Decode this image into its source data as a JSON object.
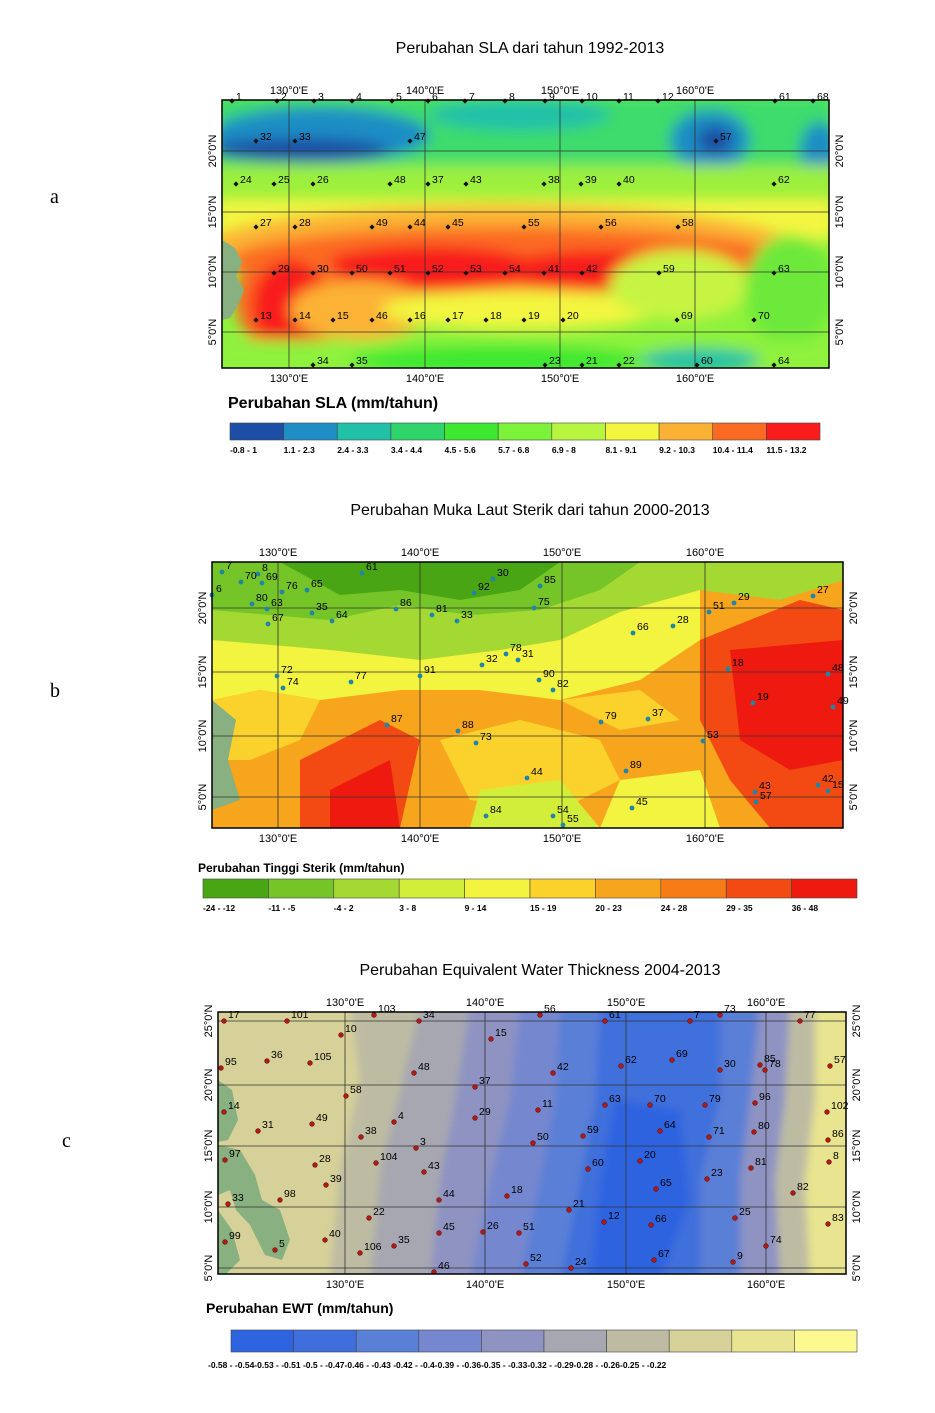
{
  "panels": [
    {
      "letter": "a",
      "title": "Perubahan SLA dari tahun 1992-2013",
      "lon_ticks": [
        "130°0'E",
        "140°0'E",
        "150°0'E",
        "160°0'E"
      ],
      "lat_ticks": [
        "20°0'N",
        "15°0'N",
        "10°0'N",
        "5°0'N"
      ],
      "legend_title": "Perubahan SLA (mm/tahun)",
      "legend_labels": [
        "-0.8 - 1",
        "1.1 - 2.3",
        "2.4 - 3.3",
        "3.4 - 4.4",
        "4.5 - 5.6",
        "5.7 - 6.8",
        "6.9 - 8",
        "8.1 - 9.1",
        "9.2 - 10.3",
        "10.4 - 11.4",
        "11.5 - 13.2"
      ],
      "legend_colors": [
        "#1d4ea6",
        "#1f8ec4",
        "#21c1a8",
        "#2ed46a",
        "#3ee831",
        "#7cf23a",
        "#b8f540",
        "#f3f63f",
        "#fbb234",
        "#fb6a22",
        "#f81c1c"
      ],
      "stations": [
        "1",
        "2",
        "3",
        "4",
        "5",
        "6",
        "7",
        "8",
        "9",
        "10",
        "11",
        "12",
        "61",
        "68",
        "32",
        "33",
        "47",
        "57",
        "24",
        "25",
        "26",
        "48",
        "37",
        "43",
        "38",
        "39",
        "40",
        "62",
        "27",
        "28",
        "49",
        "44",
        "45",
        "55",
        "56",
        "58",
        "29",
        "30",
        "50",
        "51",
        "52",
        "53",
        "54",
        "41",
        "42",
        "59",
        "63",
        "13",
        "14",
        "15",
        "46",
        "16",
        "17",
        "18",
        "19",
        "20",
        "69",
        "70",
        "34",
        "35",
        "23",
        "21",
        "22",
        "60",
        "64"
      ]
    },
    {
      "letter": "b",
      "title": "Perubahan Muka Laut Sterik dari tahun 2000-2013",
      "lon_ticks": [
        "130°0'E",
        "140°0'E",
        "150°0'E",
        "160°0'E"
      ],
      "lat_ticks": [
        "20°0'N",
        "15°0'N",
        "10°0'N",
        "5°0'N"
      ],
      "legend_title": "Perubahan Tinggi Sterik (mm/tahun)",
      "legend_labels": [
        "-24 - -12",
        "-11 - -5",
        "-4 - 2",
        "3 - 8",
        "9 - 14",
        "15 - 19",
        "20 - 23",
        "24 - 28",
        "29 - 35",
        "36 - 48"
      ],
      "legend_colors": [
        "#4aa514",
        "#75c428",
        "#a4d934",
        "#d3ee3a",
        "#f2f43f",
        "#fbd22c",
        "#f8a51e",
        "#f77b16",
        "#f24a12",
        "#ee1a10"
      ],
      "stations": [
        "7",
        "8",
        "70",
        "69",
        "6",
        "76",
        "65",
        "61",
        "30",
        "85",
        "92",
        "27",
        "80",
        "63",
        "35",
        "86",
        "81",
        "33",
        "75",
        "51",
        "29",
        "67",
        "64",
        "66",
        "28",
        "78",
        "31",
        "32",
        "90",
        "82",
        "72",
        "74",
        "77",
        "91",
        "18",
        "48",
        "19",
        "49",
        "87",
        "88",
        "73",
        "79",
        "37",
        "53",
        "44",
        "89",
        "43",
        "42",
        "57",
        "15",
        "84",
        "54",
        "55",
        "45"
      ]
    },
    {
      "letter": "c",
      "title": "Perubahan Equivalent Water Thickness 2004-2013",
      "lon_ticks": [
        "130°0'E",
        "140°0'E",
        "150°0'E",
        "160°0'E"
      ],
      "lat_ticks": [
        "25°0'N",
        "20°0'N",
        "15°0'N",
        "10°0'N",
        "5°0'N"
      ],
      "legend_title": "Perubahan EWT (mm/tahun)",
      "legend_labels": [
        "-0.58 - -0.54",
        "-0.53 - -0.51",
        "-0.5 - -0.47",
        "-0.46 - -0.43",
        "-0.42 - -0.4",
        "-0.39 - -0.36",
        "-0.35 - -0.33",
        "-0.32 - -0.29",
        "-0.28 - -0.26",
        "-0.25 - -0.22"
      ],
      "legend_text": "-0.58 - -0.54-0.53 - -0.51  -0.5 - -0.47-0.46 - -0.43  -0.42 - -0.4-0.39 - -0.36-0.35 - -0.33-0.32 - -0.29-0.28 - -0.26-0.25 - -0.22",
      "legend_colors": [
        "#2f64e0",
        "#3f6fdc",
        "#5a7fd7",
        "#7487cf",
        "#8e93c2",
        "#a7a7b1",
        "#bdbca3",
        "#d6d198",
        "#e8e48f",
        "#fbf990"
      ],
      "stations": [
        "17",
        "101",
        "103",
        "34",
        "56",
        "61",
        "7",
        "73",
        "77",
        "10",
        "15",
        "95",
        "36",
        "105",
        "62",
        "69",
        "85",
        "30",
        "78",
        "57",
        "42",
        "48",
        "37",
        "58",
        "11",
        "63",
        "70",
        "79",
        "96",
        "102",
        "14",
        "49",
        "31",
        "4",
        "38",
        "29",
        "50",
        "3",
        "59",
        "64",
        "71",
        "80",
        "86",
        "97",
        "28",
        "104",
        "43",
        "60",
        "20",
        "23",
        "81",
        "8",
        "39",
        "18",
        "65",
        "82",
        "33",
        "98",
        "44",
        "21",
        "12",
        "22",
        "66",
        "25",
        "83",
        "99",
        "40",
        "45",
        "26",
        "51",
        "35",
        "74",
        "106",
        "5",
        "67",
        "9",
        "52",
        "24",
        "46"
      ]
    }
  ]
}
